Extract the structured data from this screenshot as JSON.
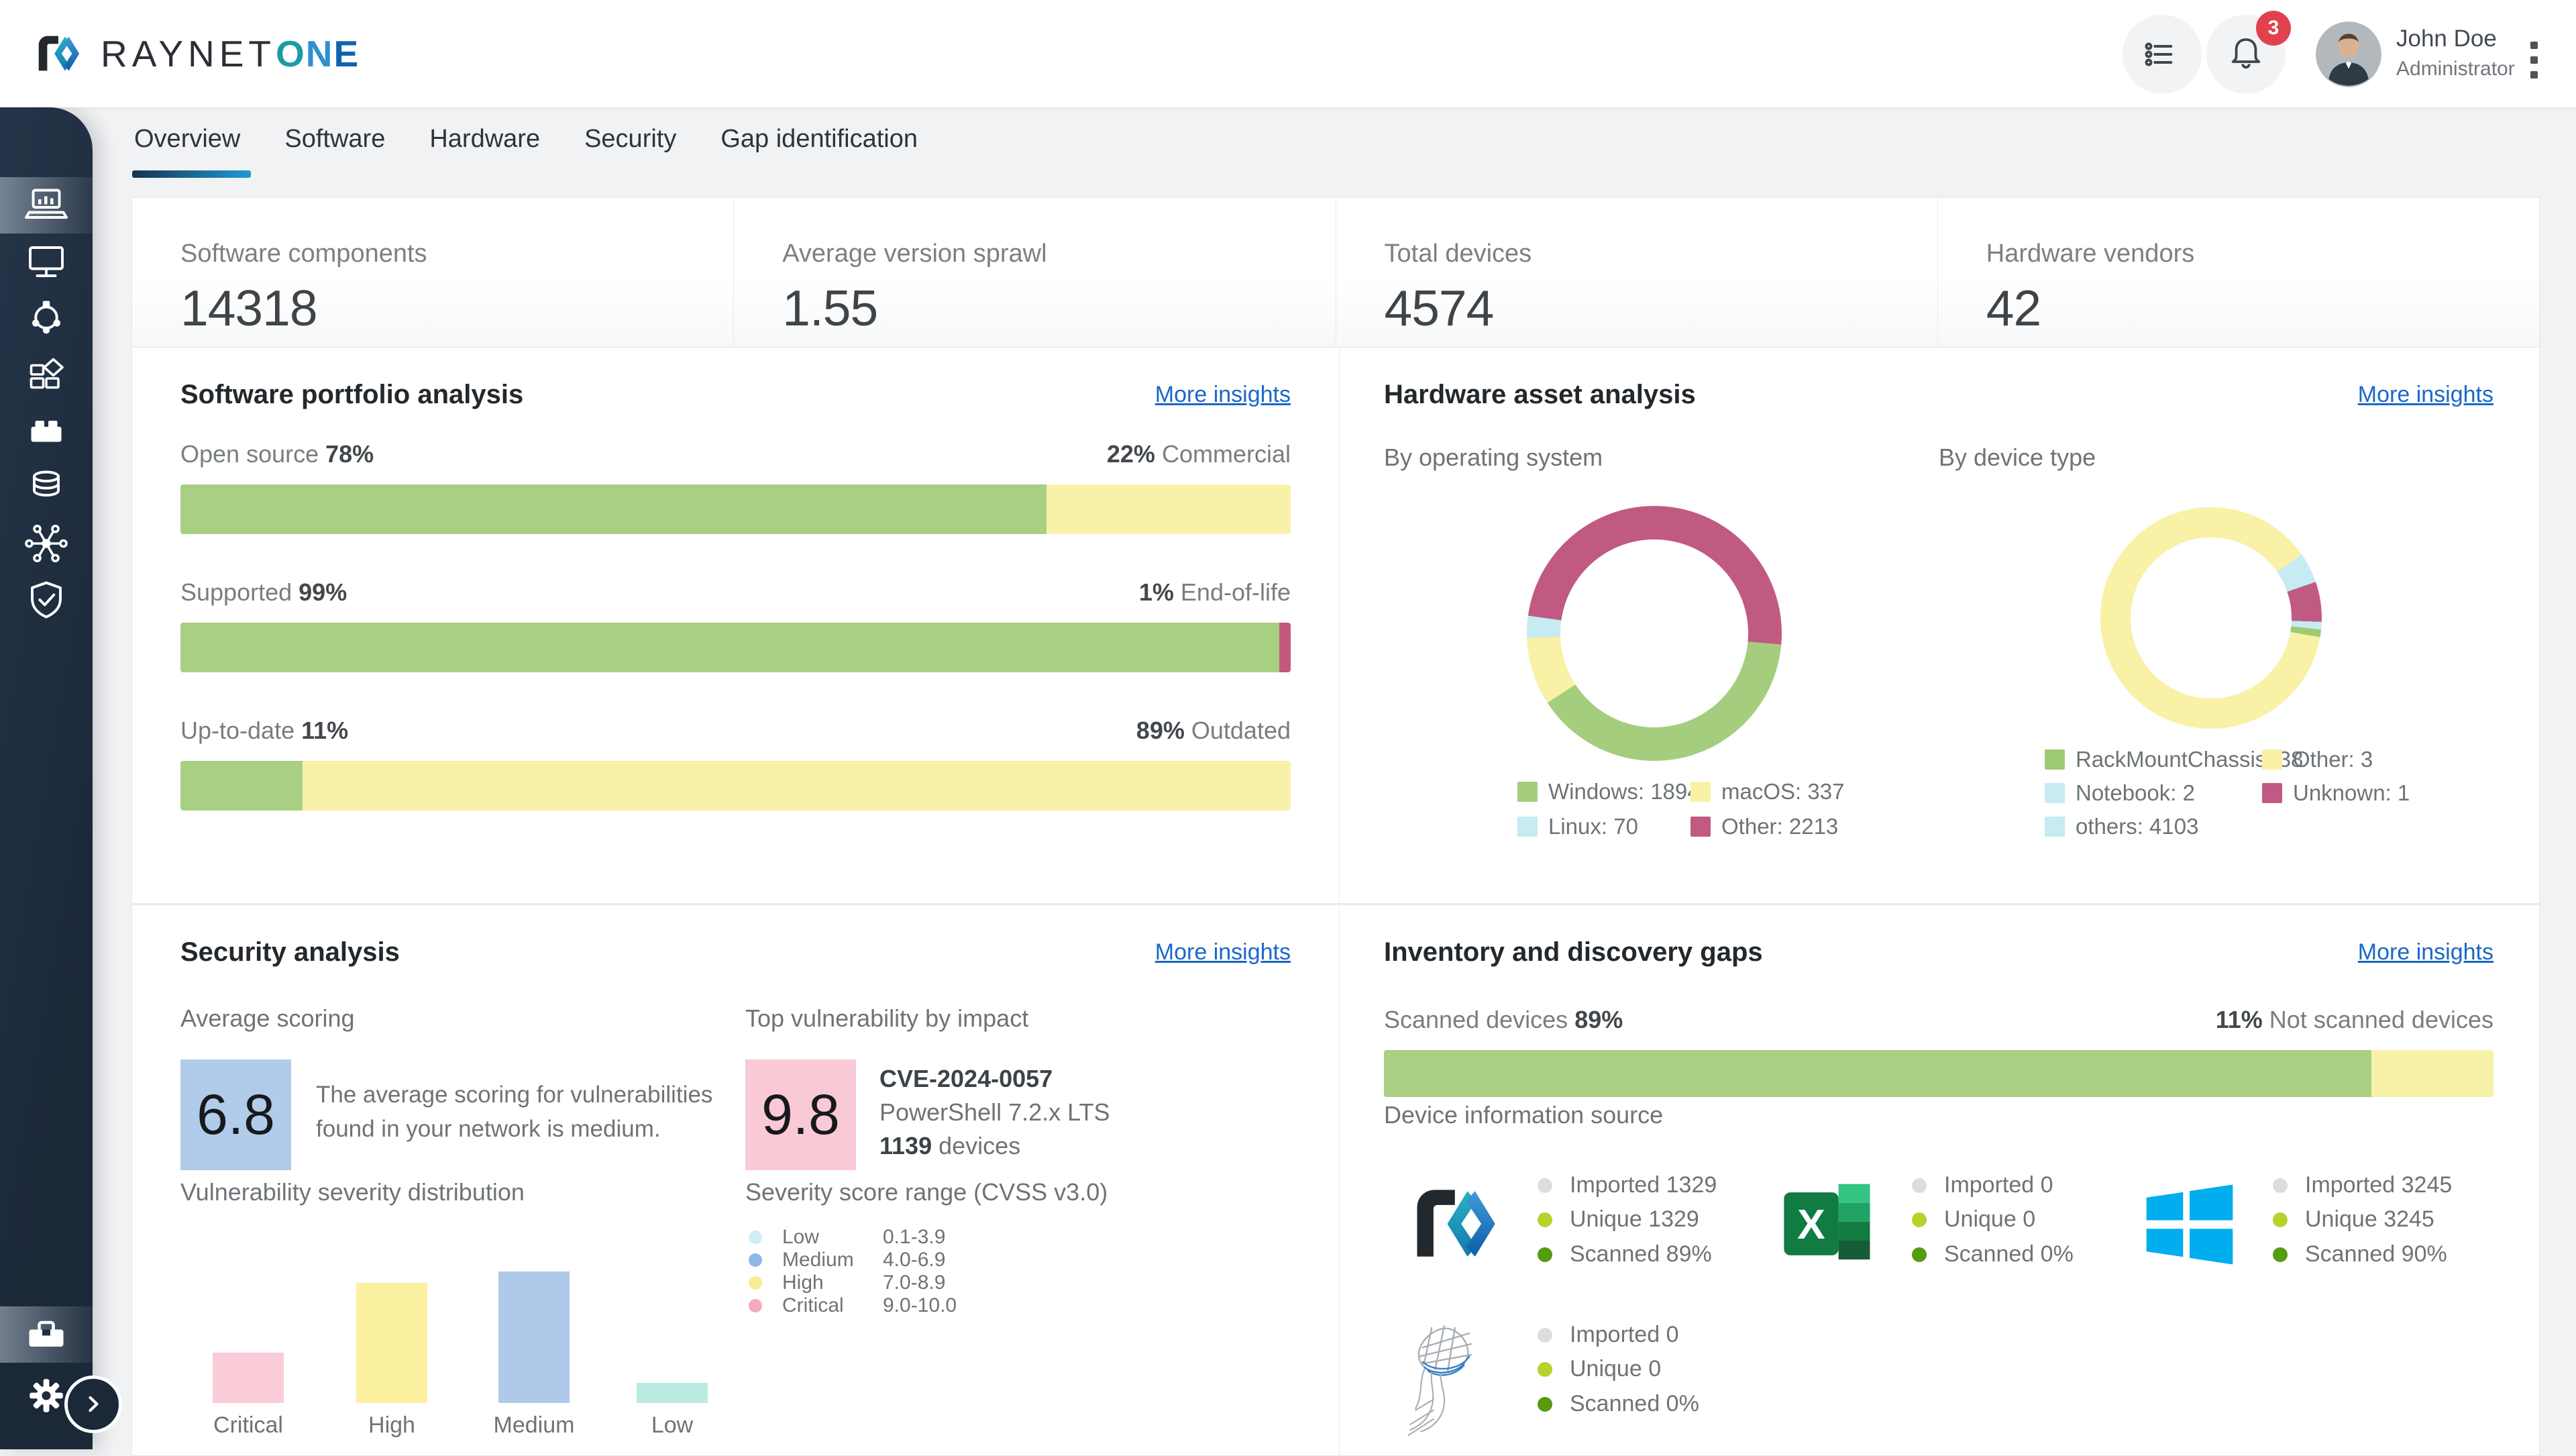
{
  "topbar": {
    "brand": {
      "word1": "RAYNET",
      "o": "O",
      "n": "N",
      "e": "E"
    },
    "notifications": {
      "count": "3"
    },
    "user": {
      "name": "John Doe",
      "role": "Administrator"
    }
  },
  "sidebar": {
    "items": [
      {
        "icon": "laptop-chart-icon",
        "active": true
      },
      {
        "icon": "monitor-icon",
        "active": false
      },
      {
        "icon": "network-nodes-icon",
        "active": false
      },
      {
        "icon": "grid-diamond-icon",
        "active": false
      },
      {
        "icon": "brick-icon",
        "active": false
      },
      {
        "icon": "database-icon",
        "active": false
      },
      {
        "icon": "hub-icon",
        "active": false
      },
      {
        "icon": "shield-check-icon",
        "active": false
      }
    ],
    "bottom": [
      {
        "icon": "toolbox-icon",
        "active": true
      },
      {
        "icon": "gear-icon",
        "active": false
      }
    ]
  },
  "tabs": {
    "items": [
      {
        "label": "Overview",
        "active": true
      },
      {
        "label": "Software",
        "active": false
      },
      {
        "label": "Hardware",
        "active": false
      },
      {
        "label": "Security",
        "active": false
      },
      {
        "label": "Gap identification",
        "active": false
      }
    ]
  },
  "stats": {
    "items": [
      {
        "label": "Software components",
        "value": "14318"
      },
      {
        "label": "Average version sprawl",
        "value": "1.55"
      },
      {
        "label": "Total devices",
        "value": "4574"
      },
      {
        "label": "Hardware vendors",
        "value": "42"
      }
    ]
  },
  "panels": {
    "software": {
      "title": "Software portfolio analysis",
      "more": "More insights",
      "rows": [
        {
          "left_label": "Open source",
          "left_value": "78%",
          "right_value": "22%",
          "right_label": "Commercial",
          "left_pct": 78,
          "left_color": "#a9cf82",
          "right_color": "#f7f2a8"
        },
        {
          "left_label": "Supported",
          "left_value": "99%",
          "right_value": "1%",
          "right_label": "End-of-life",
          "left_pct": 99,
          "left_color": "#a9cf82",
          "right_color": "#c4587f"
        },
        {
          "left_label": "Up-to-date",
          "left_value": "11%",
          "right_value": "89%",
          "right_label": "Outdated",
          "left_pct": 11,
          "left_color": "#a9cf82",
          "right_color": "#f7f2a8"
        }
      ]
    },
    "hardware": {
      "title": "Hardware asset analysis",
      "more": "More insights",
      "os": {
        "subtitle": "By operating system",
        "donut": {
          "start": 95,
          "segments": [
            {
              "color": "#a5cd7e",
              "deg": 142
            },
            {
              "color": "#f8f1a6",
              "deg": 31
            },
            {
              "color": "#c6ebf2",
              "deg": 10
            },
            {
              "color": "#c05a82",
              "deg": 177
            }
          ]
        },
        "legend": [
          {
            "label": "Windows: 1894",
            "color": "#a5cd7e"
          },
          {
            "label": "macOS: 337",
            "color": "#f8f1a6"
          },
          {
            "label": "Linux: 70",
            "color": "#c6ebf2"
          },
          {
            "label": "Other: 2213",
            "color": "#c05a82"
          }
        ]
      },
      "device": {
        "subtitle": "By device type",
        "donut": {
          "start": 55,
          "segments": [
            {
              "color": "#c6ebf2",
              "deg": 16
            },
            {
              "color": "#c05a82",
              "deg": 21
            },
            {
              "color": "#c6ebf2",
              "deg": 4
            },
            {
              "color": "#9ecb72",
              "deg": 4
            },
            {
              "color": "#f8f1a6",
              "deg": 315
            }
          ]
        },
        "legend": [
          {
            "label": "RackMountChassis: 38",
            "color": "#9ecb72"
          },
          {
            "label": "Other: 3",
            "color": "#f8f1a6"
          },
          {
            "label": "Notebook: 2",
            "color": "#c6ebf2"
          },
          {
            "label": "Unknown: 1",
            "color": "#c05a82"
          },
          {
            "label": "others: 4103",
            "color": "#c6ebf2"
          }
        ]
      }
    },
    "security": {
      "title": "Security analysis",
      "more": "More insights",
      "average": {
        "label": "Average scoring",
        "value": "6.8",
        "box_color": "#b1cbea",
        "desc": "The average scoring for vulnerabilities found in your network is medium."
      },
      "top": {
        "label": "Top vulnerability by impact",
        "value": "9.8",
        "box_color": "#f9c9d6",
        "cve": "CVE-2024-0057",
        "product": "PowerShell 7.2.x LTS",
        "devices_value": "1139",
        "devices_suffix": "devices"
      },
      "dist": {
        "label": "Vulnerability severity distribution",
        "bars": [
          {
            "label": "Critical",
            "height": 75,
            "color": "#f9ccd8"
          },
          {
            "label": "High",
            "height": 179,
            "color": "#faf0a0"
          },
          {
            "label": "Medium",
            "height": 196,
            "color": "#aec9e9"
          },
          {
            "label": "Low",
            "height": 30,
            "color": "#b9ebe1"
          }
        ]
      },
      "cvss": {
        "label": "Severity score range (CVSS v3.0)",
        "rows": [
          {
            "name": "Low",
            "range": "0.1-3.9",
            "color": "#cfeef5"
          },
          {
            "name": "Medium",
            "range": "4.0-6.9",
            "color": "#8fb7e6"
          },
          {
            "name": "High",
            "range": "7.0-8.9",
            "color": "#f8ec96"
          },
          {
            "name": "Critical",
            "range": "9.0-10.0",
            "color": "#f8a9bd"
          }
        ]
      }
    },
    "inventory": {
      "title": "Inventory and discovery gaps",
      "more": "More insights",
      "scan": {
        "left_label": "Scanned devices",
        "left_value": "89%",
        "right_value": "11%",
        "right_label": "Not scanned devices",
        "left_pct": 89,
        "left_color": "#a9cf82",
        "right_color": "#f7f2a8"
      },
      "source_label": "Device information source",
      "dot_colors": {
        "imported": "#dcdddd",
        "unique": "#b5d32b",
        "scanned": "#569b10"
      },
      "sources": [
        {
          "icon": "raynet-logo",
          "imported": "Imported 1329",
          "unique": "Unique 1329",
          "scanned": "Scanned 89%"
        },
        {
          "icon": "excel-logo",
          "imported": "Imported 0",
          "unique": "Unique 0",
          "scanned": "Scanned 0%"
        },
        {
          "icon": "windows-logo",
          "imported": "Imported 3245",
          "unique": "Unique 3245",
          "scanned": "Scanned 90%"
        },
        {
          "icon": "sql-server-logo",
          "imported": "Imported 0",
          "unique": "Unique 0",
          "scanned": "Scanned 0%"
        }
      ]
    }
  },
  "chart_data": [
    {
      "type": "pie",
      "title": "By operating system",
      "labels": [
        "Windows",
        "macOS",
        "Linux",
        "Other"
      ],
      "values": [
        1894,
        337,
        70,
        2213
      ],
      "colors": [
        "#a5cd7e",
        "#f8f1a6",
        "#c6ebf2",
        "#c05a82"
      ],
      "legend_position": "bottom"
    },
    {
      "type": "pie",
      "title": "By device type",
      "labels": [
        "RackMountChassis",
        "Other",
        "Notebook",
        "Unknown",
        "others"
      ],
      "values": [
        38,
        3,
        2,
        1,
        4103
      ],
      "colors": [
        "#9ecb72",
        "#f8f1a6",
        "#c6ebf2",
        "#c05a82",
        "#c6ebf2"
      ],
      "legend_position": "bottom"
    },
    {
      "type": "bar",
      "title": "Vulnerability severity distribution",
      "categories": [
        "Critical",
        "High",
        "Medium",
        "Low"
      ],
      "values_relative": [
        0.38,
        0.91,
        1.0,
        0.15
      ],
      "colors": [
        "#f9ccd8",
        "#faf0a0",
        "#aec9e9",
        "#b9ebe1"
      ],
      "note": "no value axis shown"
    },
    {
      "type": "bar",
      "title": "Software portfolio analysis",
      "categories": [
        "Open source vs Commercial",
        "Supported vs End-of-life",
        "Up-to-date vs Outdated"
      ],
      "series": [
        {
          "name": "left",
          "values": [
            78,
            99,
            11
          ]
        },
        {
          "name": "right",
          "values": [
            22,
            1,
            89
          ]
        }
      ],
      "unit": "%"
    },
    {
      "type": "bar",
      "title": "Scanned devices",
      "categories": [
        "Scanned vs Not scanned"
      ],
      "series": [
        {
          "name": "scanned",
          "values": [
            89
          ]
        },
        {
          "name": "not_scanned",
          "values": [
            11
          ]
        }
      ],
      "unit": "%"
    }
  ]
}
